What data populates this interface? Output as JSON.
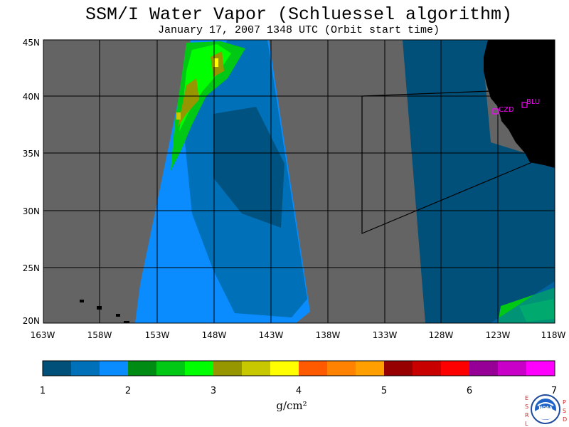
{
  "header": {
    "title": "SSM/I Water Vapor (Schluessel algorithm)",
    "subtitle": "January 17, 2007  1348 UTC  (Orbit start time)"
  },
  "map": {
    "lat_labels": [
      "45N",
      "40N",
      "35N",
      "30N",
      "25N",
      "20N"
    ],
    "lon_labels": [
      "163W",
      "158W",
      "153W",
      "148W",
      "143W",
      "138W",
      "133W",
      "128W",
      "123W",
      "118W"
    ],
    "stations": [
      {
        "id": "CZD",
        "lon": -123.0,
        "lat": 38.6
      },
      {
        "id": "BLU",
        "lon": -120.7,
        "lat": 39.3
      }
    ],
    "colors": {
      "no_data": "#646464",
      "land": "#000000"
    }
  },
  "colorbar": {
    "tick_labels": [
      "1",
      "2",
      "3",
      "4",
      "5",
      "6",
      "7"
    ],
    "units": "g/cm²",
    "colors": [
      "#00507a",
      "#0070b8",
      "#0a8cff",
      "#008b14",
      "#00c814",
      "#00ff00",
      "#969600",
      "#c8c800",
      "#ffff00",
      "#ff5a00",
      "#ff8200",
      "#ffa000",
      "#960000",
      "#c80000",
      "#ff0000",
      "#960096",
      "#c800c8",
      "#ff00ff"
    ]
  },
  "logo": {
    "left_letters": [
      "E",
      "S",
      "R",
      "L"
    ],
    "right_letters": [
      "P",
      "S",
      "D"
    ],
    "center_text": "NOAA"
  }
}
